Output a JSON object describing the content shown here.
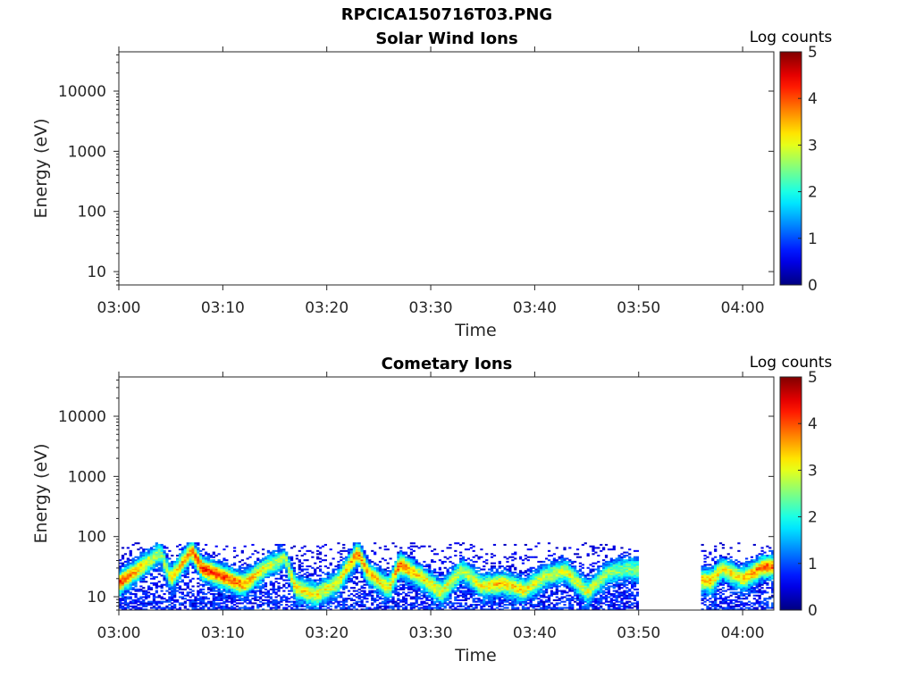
{
  "figure": {
    "title": "RPCICA150716T03.PNG"
  },
  "colors": {
    "colormap": "jet",
    "axes": "#262626",
    "background": "#ffffff"
  },
  "chart_data": [
    {
      "type": "heatmap",
      "title": "Solar Wind Ions",
      "xlabel": "Time",
      "ylabel": "Energy (eV)",
      "x_ticks": [
        "03:00",
        "03:10",
        "03:20",
        "03:30",
        "03:40",
        "03:50",
        "04:00"
      ],
      "x_range": [
        "03:00",
        "04:03"
      ],
      "y_scale": "log",
      "y_ticks": [
        "10",
        "100",
        "1000",
        "10000"
      ],
      "y_range": [
        6,
        45000
      ],
      "colorbar": {
        "label": "Log counts",
        "ticks": [
          "0",
          "1",
          "2",
          "3",
          "4",
          "5"
        ],
        "range": [
          0,
          5
        ]
      },
      "data": []
    },
    {
      "type": "heatmap",
      "title": "Cometary Ions",
      "xlabel": "Time",
      "ylabel": "Energy (eV)",
      "x_ticks": [
        "03:00",
        "03:10",
        "03:20",
        "03:30",
        "03:40",
        "03:50",
        "04:00"
      ],
      "x_range": [
        "03:00",
        "04:03"
      ],
      "y_scale": "log",
      "y_ticks": [
        "10",
        "100",
        "1000",
        "10000"
      ],
      "y_range": [
        6,
        45000
      ],
      "colorbar": {
        "label": "Log counts",
        "ticks": [
          "0",
          "1",
          "2",
          "3",
          "4",
          "5"
        ],
        "range": [
          0,
          5
        ]
      },
      "data_coverage": [
        {
          "start": "03:00",
          "end": "03:50",
          "energy_range_eV": [
            6,
            80
          ]
        },
        {
          "start": "03:56",
          "end": "04:03",
          "energy_range_eV": [
            6,
            80
          ]
        }
      ],
      "peak_trace": [
        {
          "time": "03:00",
          "energy_eV": 17,
          "log_counts": 3.6
        },
        {
          "time": "03:02",
          "energy_eV": 30,
          "log_counts": 3.0
        },
        {
          "time": "03:04",
          "energy_eV": 55,
          "log_counts": 2.4
        },
        {
          "time": "03:05",
          "energy_eV": 20,
          "log_counts": 2.8
        },
        {
          "time": "03:07",
          "energy_eV": 60,
          "log_counts": 3.5
        },
        {
          "time": "03:08",
          "energy_eV": 30,
          "log_counts": 3.8
        },
        {
          "time": "03:10",
          "energy_eV": 22,
          "log_counts": 3.6
        },
        {
          "time": "03:12",
          "energy_eV": 16,
          "log_counts": 3.2
        },
        {
          "time": "03:14",
          "energy_eV": 30,
          "log_counts": 2.6
        },
        {
          "time": "03:16",
          "energy_eV": 45,
          "log_counts": 2.4
        },
        {
          "time": "03:17",
          "energy_eV": 14,
          "log_counts": 2.8
        },
        {
          "time": "03:19",
          "energy_eV": 11,
          "log_counts": 2.6
        },
        {
          "time": "03:21",
          "energy_eV": 17,
          "log_counts": 2.5
        },
        {
          "time": "03:23",
          "energy_eV": 55,
          "log_counts": 3.6
        },
        {
          "time": "03:24",
          "energy_eV": 25,
          "log_counts": 3.0
        },
        {
          "time": "03:26",
          "energy_eV": 14,
          "log_counts": 2.6
        },
        {
          "time": "03:27",
          "energy_eV": 35,
          "log_counts": 3.6
        },
        {
          "time": "03:29",
          "energy_eV": 22,
          "log_counts": 2.8
        },
        {
          "time": "03:31",
          "energy_eV": 12,
          "log_counts": 2.6
        },
        {
          "time": "03:33",
          "energy_eV": 28,
          "log_counts": 2.4
        },
        {
          "time": "03:35",
          "energy_eV": 15,
          "log_counts": 2.6
        },
        {
          "time": "03:37",
          "energy_eV": 17,
          "log_counts": 3.0
        },
        {
          "time": "03:39",
          "energy_eV": 13,
          "log_counts": 2.6
        },
        {
          "time": "03:41",
          "energy_eV": 22,
          "log_counts": 2.4
        },
        {
          "time": "03:43",
          "energy_eV": 28,
          "log_counts": 2.6
        },
        {
          "time": "03:45",
          "energy_eV": 12,
          "log_counts": 2.4
        },
        {
          "time": "03:47",
          "energy_eV": 25,
          "log_counts": 2.2
        },
        {
          "time": "03:49",
          "energy_eV": 30,
          "log_counts": 2.2
        },
        {
          "time": "03:57",
          "energy_eV": 18,
          "log_counts": 3.0
        },
        {
          "time": "03:58",
          "energy_eV": 30,
          "log_counts": 2.8
        },
        {
          "time": "04:00",
          "energy_eV": 20,
          "log_counts": 2.8
        },
        {
          "time": "04:02",
          "energy_eV": 32,
          "log_counts": 3.6
        }
      ]
    }
  ]
}
